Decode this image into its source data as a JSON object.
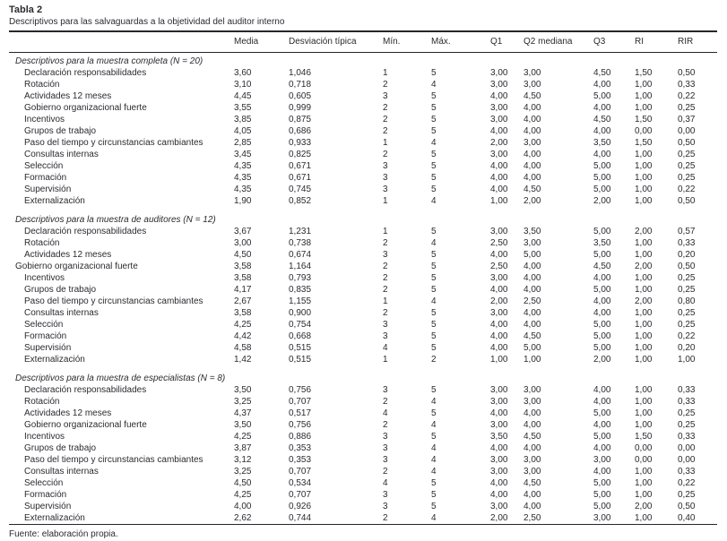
{
  "table": {
    "label": "Tabla 2",
    "caption": "Descriptivos para las salvaguardas a la objetividad del auditor interno",
    "columns": [
      "Media",
      "Desviación típica",
      "Mín.",
      "Máx.",
      "Q1",
      "Q2 mediana",
      "Q3",
      "RI",
      "RIR"
    ],
    "sections": [
      {
        "header": "Descriptivos para la muestra completa (N = 20)",
        "rows": [
          {
            "label": "Declaración responsabilidades",
            "indent": true,
            "values": [
              "3,60",
              "1,046",
              "1",
              "5",
              "3,00",
              "3,00",
              "4,50",
              "1,50",
              "0,50"
            ]
          },
          {
            "label": "Rotación",
            "indent": true,
            "values": [
              "3,10",
              "0,718",
              "2",
              "4",
              "3,00",
              "3,00",
              "4,00",
              "1,00",
              "0,33"
            ]
          },
          {
            "label": "Actividades 12 meses",
            "indent": true,
            "values": [
              "4,45",
              "0,605",
              "3",
              "5",
              "4,00",
              "4,50",
              "5,00",
              "1,00",
              "0,22"
            ]
          },
          {
            "label": "Gobierno organizacional fuerte",
            "indent": true,
            "values": [
              "3,55",
              "0,999",
              "2",
              "5",
              "3,00",
              "4,00",
              "4,00",
              "1,00",
              "0,25"
            ]
          },
          {
            "label": "Incentivos",
            "indent": true,
            "values": [
              "3,85",
              "0,875",
              "2",
              "5",
              "3,00",
              "4,00",
              "4,50",
              "1,50",
              "0,37"
            ]
          },
          {
            "label": "Grupos de trabajo",
            "indent": true,
            "values": [
              "4,05",
              "0,686",
              "2",
              "5",
              "4,00",
              "4,00",
              "4,00",
              "0,00",
              "0,00"
            ]
          },
          {
            "label": "Paso del tiempo y circunstancias cambiantes",
            "indent": true,
            "values": [
              "2,85",
              "0,933",
              "1",
              "4",
              "2,00",
              "3,00",
              "3,50",
              "1,50",
              "0,50"
            ]
          },
          {
            "label": "Consultas internas",
            "indent": true,
            "values": [
              "3,45",
              "0,825",
              "2",
              "5",
              "3,00",
              "4,00",
              "4,00",
              "1,00",
              "0,25"
            ]
          },
          {
            "label": "Selección",
            "indent": true,
            "values": [
              "4,35",
              "0,671",
              "3",
              "5",
              "4,00",
              "4,00",
              "5,00",
              "1,00",
              "0,25"
            ]
          },
          {
            "label": "Formación",
            "indent": true,
            "values": [
              "4,35",
              "0,671",
              "3",
              "5",
              "4,00",
              "4,00",
              "5,00",
              "1,00",
              "0,25"
            ]
          },
          {
            "label": "Supervisión",
            "indent": true,
            "values": [
              "4,35",
              "0,745",
              "3",
              "5",
              "4,00",
              "4,50",
              "5,00",
              "1,00",
              "0,22"
            ]
          },
          {
            "label": "Externalización",
            "indent": true,
            "values": [
              "1,90",
              "0,852",
              "1",
              "4",
              "1,00",
              "2,00",
              "2,00",
              "1,00",
              "0,50"
            ]
          }
        ]
      },
      {
        "header": "Descriptivos para la muestra de auditores (N = 12)",
        "rows": [
          {
            "label": "Declaración responsabilidades",
            "indent": true,
            "values": [
              "3,67",
              "1,231",
              "1",
              "5",
              "3,00",
              "3,50",
              "5,00",
              "2,00",
              "0,57"
            ]
          },
          {
            "label": "Rotación",
            "indent": true,
            "values": [
              "3,00",
              "0,738",
              "2",
              "4",
              "2,50",
              "3,00",
              "3,50",
              "1,00",
              "0,33"
            ]
          },
          {
            "label": "Actividades 12 meses",
            "indent": true,
            "values": [
              "4,50",
              "0,674",
              "3",
              "5",
              "4,00",
              "5,00",
              "5,00",
              "1,00",
              "0,20"
            ]
          },
          {
            "label": "Gobierno organizacional fuerte",
            "indent": false,
            "values": [
              "3,58",
              "1,164",
              "2",
              "5",
              "2,50",
              "4,00",
              "4,50",
              "2,00",
              "0,50"
            ]
          },
          {
            "label": "Incentivos",
            "indent": true,
            "values": [
              "3,58",
              "0,793",
              "2",
              "5",
              "3,00",
              "4,00",
              "4,00",
              "1,00",
              "0,25"
            ]
          },
          {
            "label": "Grupos de trabajo",
            "indent": true,
            "values": [
              "4,17",
              "0,835",
              "2",
              "5",
              "4,00",
              "4,00",
              "5,00",
              "1,00",
              "0,25"
            ]
          },
          {
            "label": "Paso del tiempo y circunstancias cambiantes",
            "indent": true,
            "values": [
              "2,67",
              "1,155",
              "1",
              "4",
              "2,00",
              "2,50",
              "4,00",
              "2,00",
              "0,80"
            ]
          },
          {
            "label": "Consultas internas",
            "indent": true,
            "values": [
              "3,58",
              "0,900",
              "2",
              "5",
              "3,00",
              "4,00",
              "4,00",
              "1,00",
              "0,25"
            ]
          },
          {
            "label": "Selección",
            "indent": true,
            "values": [
              "4,25",
              "0,754",
              "3",
              "5",
              "4,00",
              "4,00",
              "5,00",
              "1,00",
              "0,25"
            ]
          },
          {
            "label": "Formación",
            "indent": true,
            "values": [
              "4,42",
              "0,668",
              "3",
              "5",
              "4,00",
              "4,50",
              "5,00",
              "1,00",
              "0,22"
            ]
          },
          {
            "label": "Supervisión",
            "indent": true,
            "values": [
              "4,58",
              "0,515",
              "4",
              "5",
              "4,00",
              "5,00",
              "5,00",
              "1,00",
              "0,20"
            ]
          },
          {
            "label": "Externalización",
            "indent": true,
            "values": [
              "1,42",
              "0,515",
              "1",
              "2",
              "1,00",
              "1,00",
              "2,00",
              "1,00",
              "1,00"
            ]
          }
        ]
      },
      {
        "header": "Descriptivos para la muestra de especialistas (N = 8)",
        "rows": [
          {
            "label": "Declaración responsabilidades",
            "indent": true,
            "values": [
              "3,50",
              "0,756",
              "3",
              "5",
              "3,00",
              "3,00",
              "4,00",
              "1,00",
              "0,33"
            ]
          },
          {
            "label": "Rotación",
            "indent": true,
            "values": [
              "3,25",
              "0,707",
              "2",
              "4",
              "3,00",
              "3,00",
              "4,00",
              "1,00",
              "0,33"
            ]
          },
          {
            "label": "Actividades 12 meses",
            "indent": true,
            "values": [
              "4,37",
              "0,517",
              "4",
              "5",
              "4,00",
              "4,00",
              "5,00",
              "1,00",
              "0,25"
            ]
          },
          {
            "label": "Gobierno organizacional fuerte",
            "indent": true,
            "values": [
              "3,50",
              "0,756",
              "2",
              "4",
              "3,00",
              "4,00",
              "4,00",
              "1,00",
              "0,25"
            ]
          },
          {
            "label": "Incentivos",
            "indent": true,
            "values": [
              "4,25",
              "0,886",
              "3",
              "5",
              "3,50",
              "4,50",
              "5,00",
              "1,50",
              "0,33"
            ]
          },
          {
            "label": "Grupos de trabajo",
            "indent": true,
            "values": [
              "3,87",
              "0,353",
              "3",
              "4",
              "4,00",
              "4,00",
              "4,00",
              "0,00",
              "0,00"
            ]
          },
          {
            "label": "Paso del tiempo y circunstancias cambiantes",
            "indent": true,
            "values": [
              "3,12",
              "0,353",
              "3",
              "4",
              "3,00",
              "3,00",
              "3,00",
              "0,00",
              "0,00"
            ]
          },
          {
            "label": "Consultas internas",
            "indent": true,
            "values": [
              "3,25",
              "0,707",
              "2",
              "4",
              "3,00",
              "3,00",
              "4,00",
              "1,00",
              "0,33"
            ]
          },
          {
            "label": "Selección",
            "indent": true,
            "values": [
              "4,50",
              "0,534",
              "4",
              "5",
              "4,00",
              "4,50",
              "5,00",
              "1,00",
              "0,22"
            ]
          },
          {
            "label": "Formación",
            "indent": true,
            "values": [
              "4,25",
              "0,707",
              "3",
              "5",
              "4,00",
              "4,00",
              "5,00",
              "1,00",
              "0,25"
            ]
          },
          {
            "label": "Supervisión",
            "indent": true,
            "values": [
              "4,00",
              "0,926",
              "3",
              "5",
              "3,00",
              "4,00",
              "5,00",
              "2,00",
              "0,50"
            ]
          },
          {
            "label": "Externalización",
            "indent": true,
            "values": [
              "2,62",
              "0,744",
              "2",
              "4",
              "2,00",
              "2,50",
              "3,00",
              "1,00",
              "0,40"
            ]
          }
        ]
      }
    ],
    "source_note": "Fuente: elaboración propia."
  }
}
